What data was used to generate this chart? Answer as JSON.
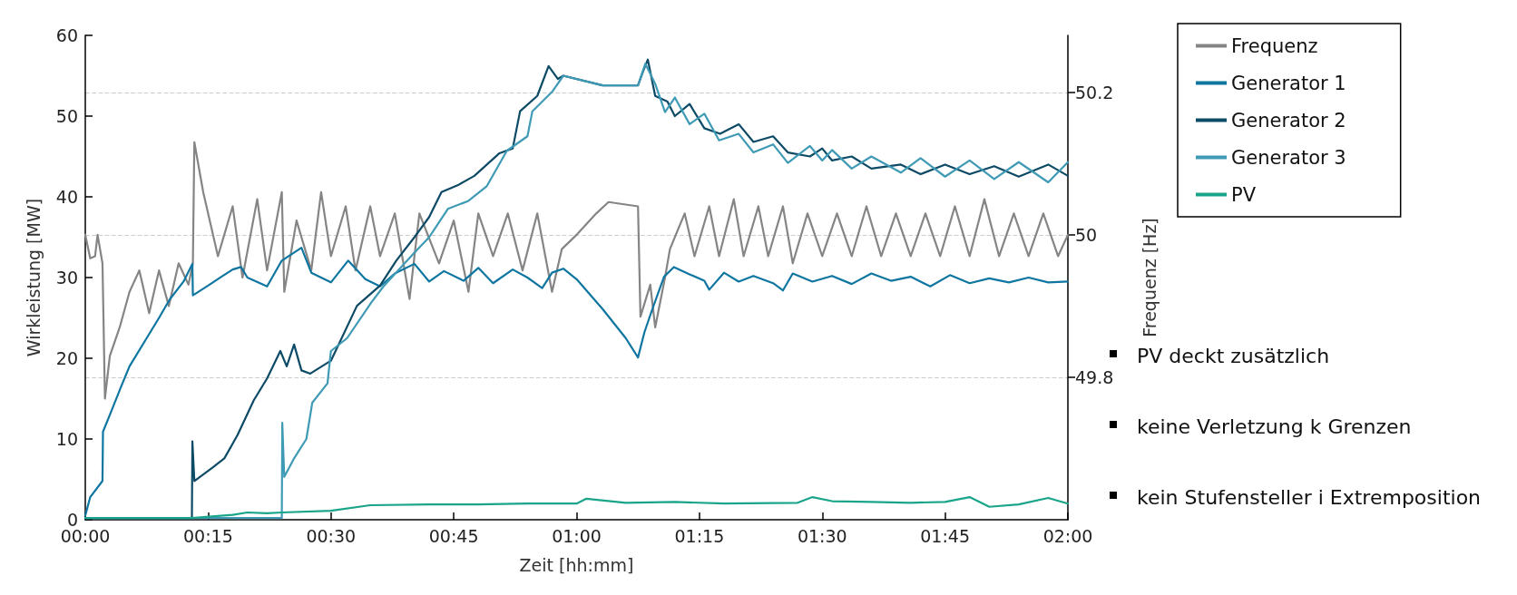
{
  "chart_data": {
    "type": "line",
    "xlabel": "Zeit [hh:mm]",
    "ylabel": "Wirkleistung [MW]",
    "y2label": "Frequenz [Hz]",
    "xlim": [
      0,
      2
    ],
    "xticks": [
      {
        "value": 0,
        "label": "00:00"
      },
      {
        "value": 0.25,
        "label": "00:15"
      },
      {
        "value": 0.5,
        "label": "00:30"
      },
      {
        "value": 0.75,
        "label": "00:45"
      },
      {
        "value": 1,
        "label": "01:00"
      },
      {
        "value": 1.25,
        "label": "01:15"
      },
      {
        "value": 1.5,
        "label": "01:30"
      },
      {
        "value": 1.75,
        "label": "01:45"
      },
      {
        "value": 2,
        "label": "02:00"
      }
    ],
    "ylim": [
      0,
      60
    ],
    "yticks": [
      0,
      10,
      20,
      30,
      40,
      50,
      60
    ],
    "y2lim": [
      49.6,
      50.28
    ],
    "y2ticks": [
      49.8,
      50,
      50.2
    ],
    "grid": "y2",
    "legend": "right",
    "marker": "none",
    "line_style": "solid",
    "series": [
      {
        "name": "Frequenz",
        "color": "#858585",
        "axis": "y2",
        "x": [
          0,
          0.01,
          0.02,
          0.025,
          0.035,
          0.04,
          0.05,
          0.07,
          0.09,
          0.11,
          0.13,
          0.15,
          0.17,
          0.19,
          0.21,
          0.219,
          0.222,
          0.24,
          0.27,
          0.3,
          0.32,
          0.35,
          0.37,
          0.4,
          0.405,
          0.43,
          0.46,
          0.48,
          0.5,
          0.53,
          0.55,
          0.58,
          0.6,
          0.63,
          0.66,
          0.68,
          0.72,
          0.75,
          0.78,
          0.8,
          0.83,
          0.86,
          0.89,
          0.92,
          0.95,
          0.97,
          1.0,
          1.04,
          1.065,
          1.125,
          1.13,
          1.15,
          1.16,
          1.18,
          1.19,
          1.22,
          1.24,
          1.27,
          1.29,
          1.32,
          1.34,
          1.37,
          1.39,
          1.42,
          1.44,
          1.47,
          1.5,
          1.53,
          1.56,
          1.59,
          1.62,
          1.65,
          1.68,
          1.71,
          1.74,
          1.77,
          1.8,
          1.83,
          1.86,
          1.89,
          1.92,
          1.95,
          1.98,
          2.0
        ],
        "values": [
          50.0,
          49.967,
          49.97,
          50.0,
          49.96,
          49.77,
          49.83,
          49.87,
          49.92,
          49.95,
          49.89,
          49.95,
          49.9,
          49.96,
          49.93,
          49.96,
          50.13,
          50.06,
          49.97,
          50.04,
          49.94,
          50.05,
          49.95,
          50.06,
          49.92,
          50.02,
          49.95,
          50.06,
          49.97,
          50.04,
          49.95,
          50.04,
          49.97,
          50.03,
          49.91,
          50.03,
          49.96,
          50.02,
          49.92,
          50.03,
          49.97,
          50.03,
          49.95,
          50.03,
          49.92,
          49.98,
          50.0,
          50.03,
          50.046,
          50.04,
          49.885,
          49.93,
          49.87,
          49.94,
          49.98,
          50.03,
          49.97,
          50.04,
          49.97,
          50.05,
          49.97,
          50.04,
          49.97,
          50.04,
          49.96,
          50.03,
          49.97,
          50.03,
          49.97,
          50.04,
          49.97,
          50.03,
          49.97,
          50.03,
          49.97,
          50.04,
          49.97,
          50.05,
          49.97,
          50.03,
          49.97,
          50.03,
          49.97,
          50.0
        ]
      },
      {
        "name": "Generator 1",
        "color": "#0e76a0",
        "x": [
          0,
          0.01,
          0.035,
          0.036,
          0.05,
          0.073,
          0.09,
          0.125,
          0.15,
          0.172,
          0.2,
          0.218,
          0.219,
          0.25,
          0.277,
          0.3,
          0.317,
          0.33,
          0.37,
          0.4,
          0.44,
          0.46,
          0.5,
          0.535,
          0.57,
          0.6,
          0.63,
          0.67,
          0.7,
          0.73,
          0.77,
          0.8,
          0.83,
          0.87,
          0.9,
          0.93,
          0.95,
          0.973,
          1.0,
          1.053,
          1.1,
          1.125,
          1.138,
          1.152,
          1.178,
          1.198,
          1.23,
          1.26,
          1.27,
          1.3,
          1.33,
          1.36,
          1.4,
          1.42,
          1.44,
          1.48,
          1.52,
          1.56,
          1.6,
          1.64,
          1.68,
          1.72,
          1.76,
          1.8,
          1.84,
          1.88,
          1.92,
          1.96,
          2.0
        ],
        "values": [
          0.5,
          2.8,
          4.8,
          10.9,
          13,
          16.5,
          19,
          22.5,
          25,
          27.3,
          29.5,
          31.7,
          27.8,
          29,
          30.1,
          31,
          31.3,
          30,
          28.9,
          32.1,
          33.7,
          30.6,
          29.4,
          32.1,
          29.8,
          28.9,
          30.5,
          31.7,
          29.5,
          30.8,
          29.6,
          31.2,
          29.3,
          31,
          30,
          28.7,
          30.6,
          31.1,
          29.8,
          26.1,
          22.5,
          20.1,
          23.2,
          25.7,
          30.1,
          31.3,
          30.4,
          29.6,
          28.5,
          30.6,
          29.5,
          30.2,
          29.3,
          28.4,
          30.5,
          29.5,
          30.2,
          29.2,
          30.5,
          29.6,
          30.1,
          28.9,
          30.3,
          29.3,
          29.9,
          29.4,
          30,
          29.4,
          29.5
        ]
      },
      {
        "name": "Generator 2",
        "color": "#0d4a66",
        "x": [
          0,
          0.217,
          0.218,
          0.222,
          0.26,
          0.283,
          0.31,
          0.343,
          0.37,
          0.397,
          0.41,
          0.425,
          0.44,
          0.458,
          0.5,
          0.553,
          0.6,
          0.633,
          0.67,
          0.7,
          0.725,
          0.76,
          0.792,
          0.843,
          0.87,
          0.885,
          0.92,
          0.943,
          0.962,
          0.973,
          1.053,
          1.125,
          1.135,
          1.145,
          1.16,
          1.185,
          1.2,
          1.23,
          1.26,
          1.292,
          1.33,
          1.36,
          1.4,
          1.43,
          1.475,
          1.5,
          1.52,
          1.56,
          1.6,
          1.66,
          1.7,
          1.75,
          1.8,
          1.85,
          1.9,
          1.96,
          2.0
        ],
        "values": [
          0.2,
          0.2,
          9.7,
          4.8,
          6.5,
          7.6,
          10.5,
          14.8,
          17.5,
          20.9,
          19,
          21.7,
          18.5,
          18.1,
          19.7,
          26.5,
          29,
          32.1,
          35,
          37.5,
          40.6,
          41.5,
          42.6,
          45.4,
          46,
          50.6,
          52.5,
          56.2,
          54.6,
          55,
          53.8,
          53.8,
          55.5,
          57,
          52.5,
          51.8,
          50,
          51.5,
          48.5,
          47.8,
          49,
          46.8,
          47.5,
          45.5,
          45,
          46,
          44.5,
          45,
          43.5,
          44,
          42.8,
          44,
          42.8,
          43.8,
          42.5,
          44,
          42.6
        ]
      },
      {
        "name": "Generator 3",
        "color": "#3f9ab5",
        "x": [
          0,
          0.4,
          0.401,
          0.405,
          0.425,
          0.45,
          0.462,
          0.493,
          0.5,
          0.533,
          0.582,
          0.607,
          0.667,
          0.7,
          0.738,
          0.78,
          0.817,
          0.858,
          0.9,
          0.91,
          0.95,
          0.973,
          1.053,
          1.125,
          1.14,
          1.16,
          1.18,
          1.2,
          1.23,
          1.26,
          1.29,
          1.33,
          1.36,
          1.4,
          1.43,
          1.475,
          1.5,
          1.52,
          1.56,
          1.6,
          1.66,
          1.7,
          1.75,
          1.8,
          1.85,
          1.9,
          1.96,
          2.0
        ],
        "values": [
          0.2,
          0.2,
          12,
          5.3,
          7.6,
          10,
          14.5,
          16.9,
          20.9,
          22.5,
          26.9,
          28.9,
          32.9,
          35,
          38.5,
          39.5,
          41.3,
          45.7,
          47.5,
          50.6,
          53,
          55,
          53.8,
          53.8,
          56.5,
          54,
          50.5,
          52.3,
          49,
          50.3,
          47,
          47.8,
          45.5,
          46.5,
          44.2,
          46.3,
          44.5,
          45.8,
          43.5,
          45,
          43,
          44.8,
          42.5,
          44.5,
          42.2,
          44.3,
          41.8,
          44.3
        ]
      },
      {
        "name": "PV",
        "color": "#1aa58a",
        "x": [
          0,
          0.217,
          0.3,
          0.33,
          0.37,
          0.4,
          0.5,
          0.58,
          0.7,
          0.8,
          0.9,
          1.0,
          1.02,
          1.1,
          1.2,
          1.3,
          1.45,
          1.48,
          1.52,
          1.6,
          1.68,
          1.75,
          1.8,
          1.84,
          1.9,
          1.96,
          2.0
        ],
        "values": [
          0.2,
          0.2,
          0.6,
          0.9,
          0.8,
          0.9,
          1.1,
          1.8,
          1.9,
          1.9,
          2.0,
          2.0,
          2.6,
          2.1,
          2.2,
          2.0,
          2.1,
          2.8,
          2.3,
          2.2,
          2.1,
          2.2,
          2.8,
          1.6,
          1.9,
          2.7,
          2.0
        ]
      }
    ],
    "annotations": [
      "PV deckt zusätzlich",
      "keine Verletzung k Grenzen",
      "kein Stufensteller i Extremposition"
    ]
  }
}
